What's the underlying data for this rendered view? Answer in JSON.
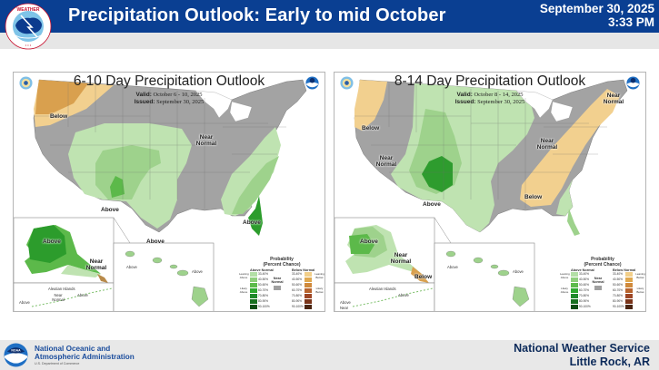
{
  "header": {
    "title": "Precipitation Outlook: Early to mid October",
    "date": "September 30, 2025",
    "time": "3:33 PM",
    "logo_text": "NATIONAL WEATHER SERVICE",
    "colors": {
      "banner": "#0a3f92",
      "subbar": "#e6e6e6"
    }
  },
  "panels": [
    {
      "title": "6-10 Day Precipitation Outlook",
      "valid_label": "Valid:",
      "valid_value": "October 6 - 10, 2025",
      "issued_label": "Issued:",
      "issued_value": "September 30, 2025",
      "labels": {
        "nw": "Below",
        "midwest": "Near Normal",
        "southwest": "Above",
        "southeast": "Above",
        "texas": "Above",
        "alaska": "Above",
        "alaska_se": "Near Normal",
        "aleutian_title": "Aleutian Islands",
        "aleutian_w": "Above",
        "aleutian_mid": "Near Normal",
        "aleutian_e": "Above",
        "hawaii_w": "Above",
        "hawaii_e": "Above"
      }
    },
    {
      "title": "8-14 Day Precipitation Outlook",
      "valid_label": "Valid:",
      "valid_value": "October 8 - 14, 2025",
      "issued_label": "Issued:",
      "issued_value": "September 30, 2025",
      "labels": {
        "nw": "Below",
        "west": "Near Normal",
        "midwest": "Near Normal",
        "northeast": "Near Normal",
        "southwest": "Above",
        "east": "Below",
        "alaska": "Above",
        "alaska_mid": "Near Normal",
        "alaska_se": "Below",
        "aleutian_title": "Aleutian Islands",
        "aleutian_w": "Above",
        "aleutian_mid": "Near",
        "aleutian_e": "Above",
        "hawaii_w": "Above",
        "hawaii_e": "Above"
      }
    }
  ],
  "legend": {
    "title": "Probability",
    "subtitle": "(Percent Chance)",
    "above_header": "Above Normal",
    "below_header": "Below Normal",
    "near_label": "Near Normal",
    "leaning_above": "Leaning Above",
    "likely_above": "Likely Above",
    "leaning_below": "Leaning Below",
    "likely_below": "Likely Below",
    "bins": [
      "33-40%",
      "40-50%",
      "50-60%",
      "60-70%",
      "70-80%",
      "80-90%",
      "90-100%"
    ],
    "above_colors": [
      "#b3dfa6",
      "#8fcf7c",
      "#5dbb4b",
      "#2ea82f",
      "#1e8a2a",
      "#17701f",
      "#0d4d14"
    ],
    "below_colors": [
      "#f2cf8a",
      "#e0a84f",
      "#d08a3c",
      "#b8642e",
      "#9e4726",
      "#7a3419",
      "#4a2512"
    ],
    "near_color": "#a0a0a0"
  },
  "map_colors": {
    "near": "#a3a3a3",
    "above_1": "#bfe3b1",
    "above_2": "#9ed28c",
    "above_3": "#5cb94a",
    "above_4": "#2c9c2c",
    "below_1": "#f2d08f",
    "below_2": "#d9a04e",
    "water": "#ffffff"
  },
  "footer": {
    "org_line1": "National Oceanic and",
    "org_line2": "Atmospheric Administration",
    "dept": "U.S. Department of Commerce",
    "office_line1": "National Weather Service",
    "office_line2": "Little Rock, AR",
    "noaa_logo_text": "NOAA"
  }
}
